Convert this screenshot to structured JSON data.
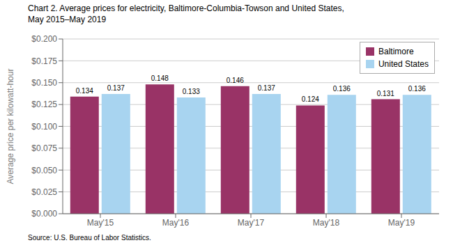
{
  "chart_data": {
    "type": "bar",
    "title": "Chart 2. Average prices for electricity, Baltimore-Columbia-Towson and United States,",
    "subtitle": "May 2015–May 2019",
    "y_label": "Average price per kilowatt-hour",
    "annotations": [
      "Source: U.S. Bureau of Labor Statistics."
    ],
    "categories": [
      "May'15",
      "May'16",
      "May'17",
      "May'18",
      "May'19"
    ],
    "series": [
      {
        "name": "Baltimore",
        "color": "#993366",
        "values": [
          0.134,
          0.148,
          0.146,
          0.124,
          0.131
        ]
      },
      {
        "name": "United States",
        "color": "#a8d4f0",
        "values": [
          0.137,
          0.133,
          0.137,
          0.136,
          0.136
        ]
      }
    ],
    "ylim": [
      0.0,
      0.2
    ],
    "yticks": [
      {
        "value": 0.0,
        "label": "$0.000"
      },
      {
        "value": 0.025,
        "label": "$0.025"
      },
      {
        "value": 0.05,
        "label": "$0.050"
      },
      {
        "value": 0.075,
        "label": "$0.075"
      },
      {
        "value": 0.1,
        "label": "$0.100"
      },
      {
        "value": 0.125,
        "label": "$0.125"
      },
      {
        "value": 0.15,
        "label": "$0.150"
      },
      {
        "value": 0.175,
        "label": "$0.175"
      },
      {
        "value": 0.2,
        "label": "$0.200"
      }
    ],
    "grid": true,
    "legend": "upper right",
    "data_labels": true
  }
}
